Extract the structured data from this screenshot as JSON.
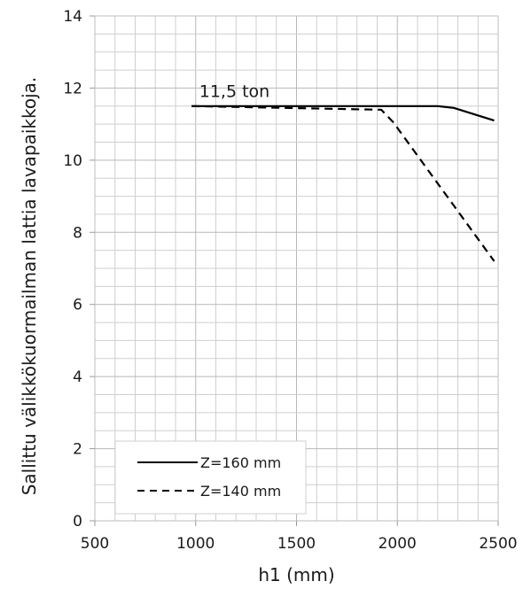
{
  "chart_data": {
    "type": "line",
    "title": "",
    "xlabel": "h1 (mm)",
    "ylabel": "Sallittu välikkökuormailman lattia lavapaikkoja.",
    "xlim": [
      500,
      2500
    ],
    "ylim": [
      0,
      14
    ],
    "x_ticks": [
      "500",
      "1000",
      "1500",
      "2000",
      "2500"
    ],
    "y_ticks": [
      "0",
      "2",
      "4",
      "6",
      "8",
      "10",
      "12",
      "14"
    ],
    "grid": true,
    "minor_x_step": 100,
    "minor_y_step": 0.5,
    "legend_position": "bottom-left",
    "annotation": "11,5 ton",
    "annotation_x": 1000,
    "annotation_y": 11.9,
    "series": [
      {
        "name": "Z=160 mm",
        "dash": "solid",
        "color": "#000000",
        "x": [
          980,
          2200,
          2280,
          2480
        ],
        "y": [
          11.5,
          11.5,
          11.45,
          11.1
        ]
      },
      {
        "name": "Z=140 mm",
        "dash": "dashed",
        "color": "#000000",
        "x": [
          980,
          1920,
          1980,
          2480
        ],
        "y": [
          11.5,
          11.4,
          11.05,
          7.2
        ]
      }
    ]
  }
}
